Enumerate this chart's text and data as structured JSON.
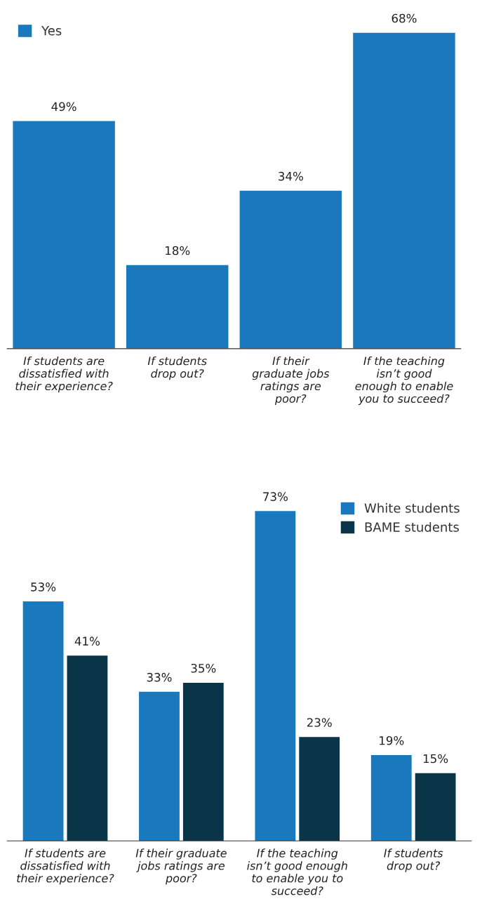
{
  "chart_data": [
    {
      "type": "bar",
      "categories": [
        "If students are\ndissatisfied with\ntheir experience?",
        "If students\ndrop out?",
        "If their\ngraduate jobs\nratings are\npoor?",
        "If the teaching\nisn’t good\nenough to enable\nyou to succeed?"
      ],
      "series": [
        {
          "name": "Yes",
          "color": "#1a78bd",
          "values": [
            49,
            18,
            34,
            68
          ],
          "value_labels": [
            "49%",
            "18%",
            "34%",
            "68%"
          ]
        }
      ],
      "tick_labels": "x",
      "legend": "top left",
      "grid": false
    },
    {
      "type": "bar",
      "categories": [
        "If students are\ndissatisfied with\ntheir experience?",
        "If their graduate\njobs ratings are\npoor?",
        "If the teaching\nisn’t good enough\nto enable you to\nsucceed?",
        "If students\ndrop out?"
      ],
      "series": [
        {
          "name": "White students",
          "color": "#1a78bd",
          "values": [
            53,
            33,
            73,
            19
          ],
          "value_labels": [
            "53%",
            "33%",
            "73%",
            "19%"
          ]
        },
        {
          "name": "BAME students",
          "color": "#0a3549",
          "values": [
            41,
            35,
            23,
            15
          ],
          "value_labels": [
            "41%",
            "35%",
            "23%",
            "15%"
          ]
        }
      ],
      "tick_labels": "x",
      "legend": "top right",
      "grid": false
    }
  ]
}
